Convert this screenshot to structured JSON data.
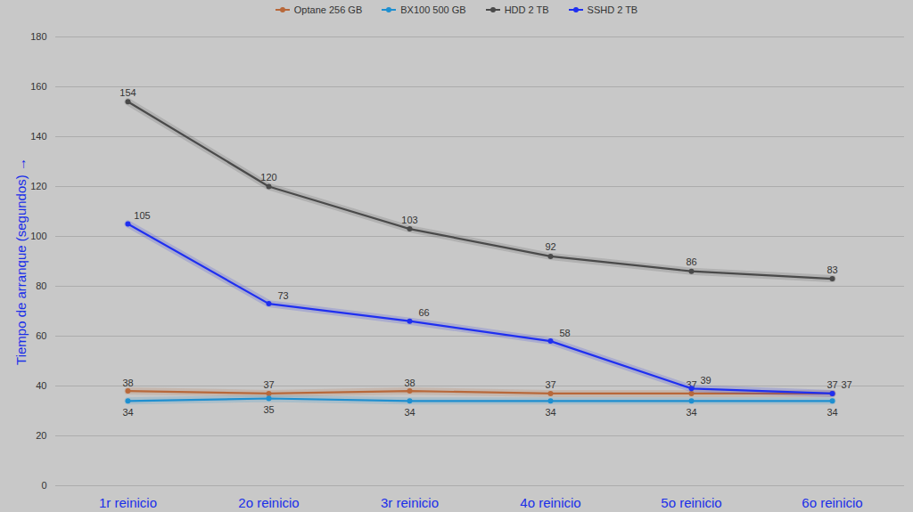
{
  "chart_data": {
    "type": "line",
    "y_label": "Tiempo de arranque (segundos)",
    "categories": [
      "1r reinicio",
      "2o reinicio",
      "3r reinicio",
      "4o reinicio",
      "5o reinicio",
      "6o reinicio"
    ],
    "series": [
      {
        "name": "Optane 256 GB",
        "color": "#b8683a",
        "values": [
          38,
          37,
          38,
          37,
          37,
          37
        ]
      },
      {
        "name": "BX100 500 GB",
        "color": "#1e8fd0",
        "values": [
          34,
          35,
          34,
          34,
          34,
          34
        ]
      },
      {
        "name": "HDD 2 TB",
        "color": "#4a4a4a",
        "values": [
          154,
          120,
          103,
          92,
          86,
          83
        ]
      },
      {
        "name": "SSHD 2 TB",
        "color": "#1f2ff0",
        "values": [
          105,
          73,
          66,
          58,
          39,
          37
        ]
      }
    ],
    "ylim": [
      0,
      180
    ],
    "yticks": [
      0,
      20,
      40,
      60,
      80,
      100,
      120,
      140,
      160,
      180
    ],
    "grid": true,
    "data_labels": true,
    "legend": "top",
    "marker": "circle"
  }
}
